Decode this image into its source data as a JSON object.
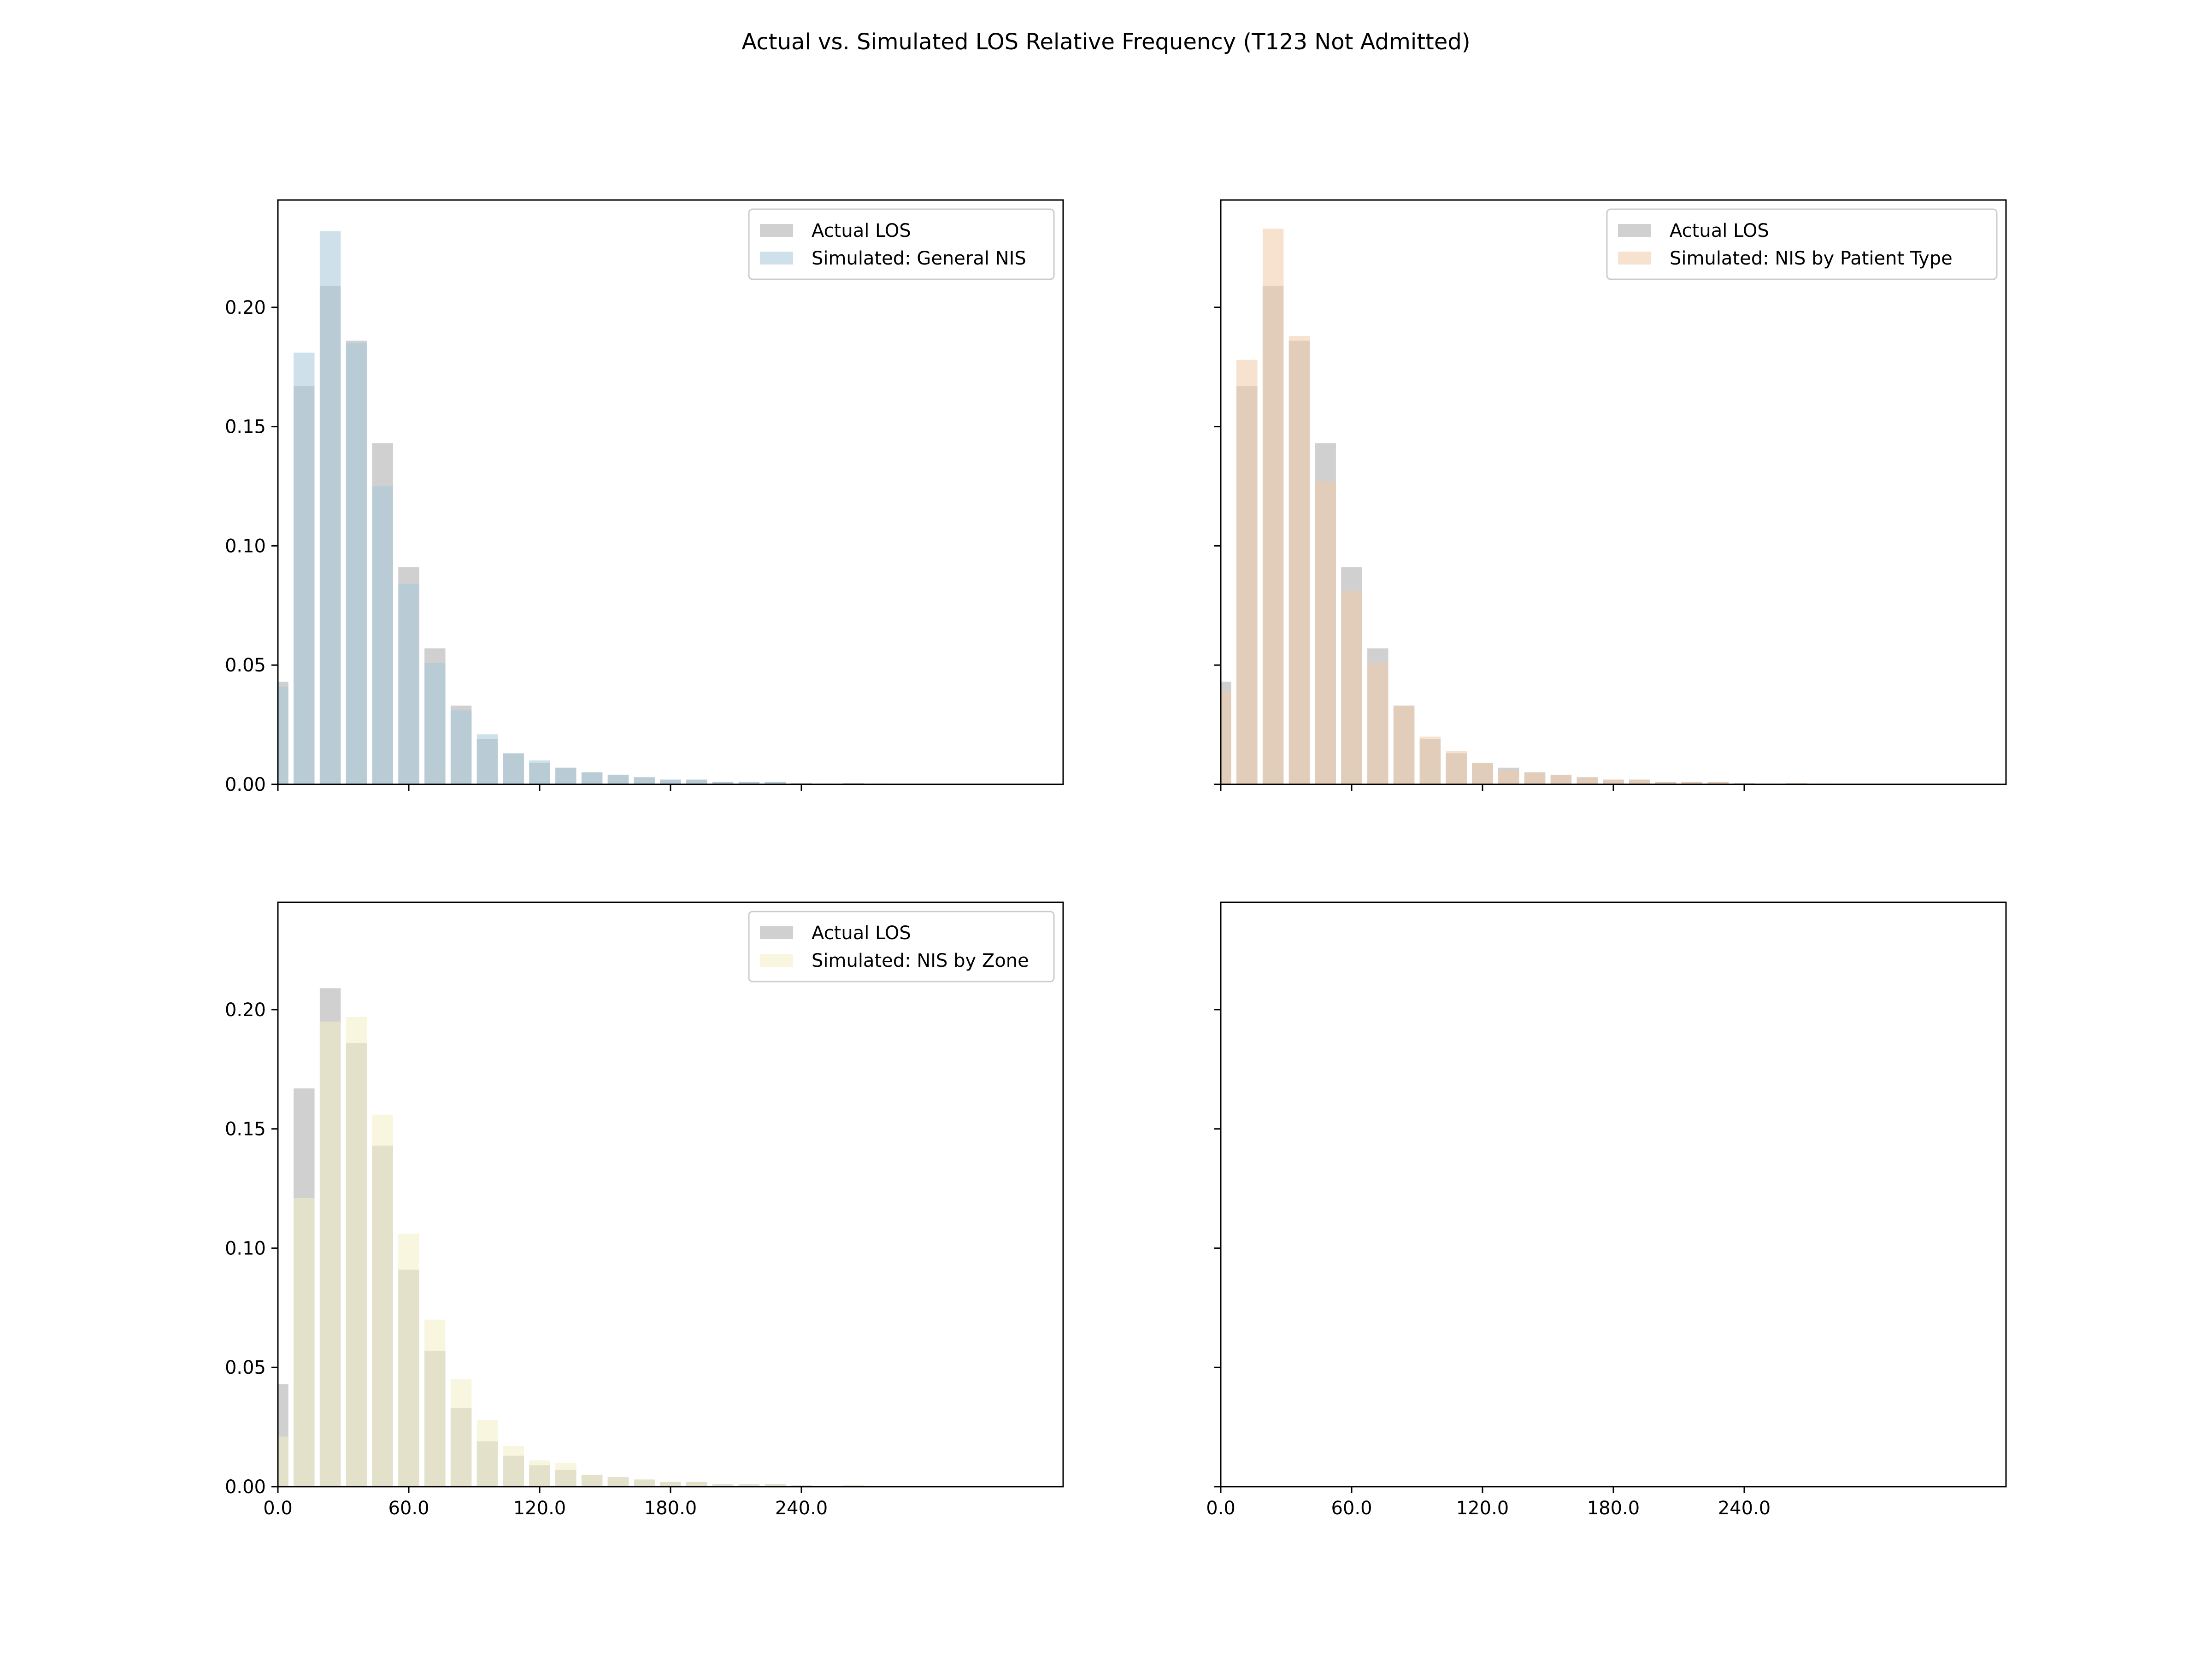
{
  "figure": {
    "title": "Actual vs. Simulated LOS Relative Frequency (T123 Not Admitted)"
  },
  "chart_data": [
    {
      "type": "bar",
      "panel": "top-left",
      "title": "",
      "xlabel": "",
      "ylabel": "",
      "x": [
        0,
        12,
        24,
        36,
        48,
        60,
        72,
        84,
        96,
        108,
        120,
        132,
        144,
        156,
        168,
        180,
        192,
        204,
        216,
        228,
        240,
        252,
        264,
        276
      ],
      "xlim": [
        0,
        360
      ],
      "ylim": [
        0,
        0.245
      ],
      "xticks": [
        0,
        60,
        120,
        180,
        240
      ],
      "xticklabels": [
        "0.0",
        "60.0",
        "120.0",
        "180.0",
        "240.0"
      ],
      "show_xticklabels": false,
      "yticks": [
        0,
        0.05,
        0.1,
        0.15,
        0.2
      ],
      "yticklabels": [
        "0.00",
        "0.05",
        "0.10",
        "0.15",
        "0.20"
      ],
      "show_yticklabels": true,
      "legend": "upper right",
      "grid": false,
      "series": [
        {
          "name": "Actual LOS",
          "color": "#a9a9a9",
          "values": [
            0.043,
            0.167,
            0.209,
            0.186,
            0.143,
            0.091,
            0.057,
            0.033,
            0.019,
            0.013,
            0.009,
            0.007,
            0.005,
            0.004,
            0.003,
            0.002,
            0.002,
            0.001,
            0.001,
            0.001,
            0.0005,
            0.0003,
            0.0005,
            0.0003
          ]
        },
        {
          "name": "Simulated: General NIS",
          "color": "#a6c8d8",
          "values": [
            0.041,
            0.181,
            0.232,
            0.185,
            0.125,
            0.084,
            0.051,
            0.031,
            0.021,
            0.013,
            0.01,
            0.007,
            0.005,
            0.004,
            0.003,
            0.002,
            0.002,
            0.001,
            0.001,
            0.001,
            0.0004,
            0.0003,
            0.0005,
            0.0003
          ]
        }
      ]
    },
    {
      "type": "bar",
      "panel": "top-right",
      "title": "",
      "xlabel": "",
      "ylabel": "",
      "x": [
        0,
        12,
        24,
        36,
        48,
        60,
        72,
        84,
        96,
        108,
        120,
        132,
        144,
        156,
        168,
        180,
        192,
        204,
        216,
        228,
        240,
        252,
        264,
        276
      ],
      "xlim": [
        0,
        360
      ],
      "ylim": [
        0,
        0.245
      ],
      "xticks": [
        0,
        60,
        120,
        180,
        240
      ],
      "xticklabels": [
        "0.0",
        "60.0",
        "120.0",
        "180.0",
        "240.0"
      ],
      "show_xticklabels": false,
      "yticks": [
        0,
        0.05,
        0.1,
        0.15,
        0.2
      ],
      "yticklabels": [
        "0.00",
        "0.05",
        "0.10",
        "0.15",
        "0.20"
      ],
      "show_yticklabels": false,
      "legend": "upper right",
      "grid": false,
      "series": [
        {
          "name": "Actual LOS",
          "color": "#a9a9a9",
          "values": [
            0.043,
            0.167,
            0.209,
            0.186,
            0.143,
            0.091,
            0.057,
            0.033,
            0.019,
            0.013,
            0.009,
            0.007,
            0.005,
            0.004,
            0.003,
            0.002,
            0.002,
            0.001,
            0.001,
            0.001,
            0.0005,
            0.0003,
            0.0005,
            0.0003
          ]
        },
        {
          "name": "Simulated: NIS by Patient Type",
          "color": "#f0c9a8",
          "values": [
            0.039,
            0.178,
            0.233,
            0.188,
            0.127,
            0.081,
            0.051,
            0.033,
            0.02,
            0.014,
            0.009,
            0.006,
            0.005,
            0.004,
            0.003,
            0.002,
            0.002,
            0.001,
            0.001,
            0.001,
            0.0004,
            0.0003,
            0.0005,
            0.0003
          ]
        }
      ]
    },
    {
      "type": "bar",
      "panel": "bottom-left",
      "title": "",
      "xlabel": "",
      "ylabel": "",
      "x": [
        0,
        12,
        24,
        36,
        48,
        60,
        72,
        84,
        96,
        108,
        120,
        132,
        144,
        156,
        168,
        180,
        192,
        204,
        216,
        228,
        240,
        252,
        264,
        276
      ],
      "xlim": [
        0,
        360
      ],
      "ylim": [
        0,
        0.245
      ],
      "xticks": [
        0,
        60,
        120,
        180,
        240
      ],
      "xticklabels": [
        "0.0",
        "60.0",
        "120.0",
        "180.0",
        "240.0"
      ],
      "show_xticklabels": true,
      "yticks": [
        0,
        0.05,
        0.1,
        0.15,
        0.2
      ],
      "yticklabels": [
        "0.00",
        "0.05",
        "0.10",
        "0.15",
        "0.20"
      ],
      "show_yticklabels": true,
      "legend": "upper right",
      "grid": false,
      "series": [
        {
          "name": "Actual LOS",
          "color": "#a9a9a9",
          "values": [
            0.043,
            0.167,
            0.209,
            0.186,
            0.143,
            0.091,
            0.057,
            0.033,
            0.019,
            0.013,
            0.009,
            0.007,
            0.005,
            0.004,
            0.003,
            0.002,
            0.002,
            0.001,
            0.001,
            0.001,
            0.0005,
            0.0003,
            0.0005,
            0.0003
          ]
        },
        {
          "name": "Simulated: NIS by Zone",
          "color": "#f2efc2",
          "values": [
            0.021,
            0.121,
            0.195,
            0.197,
            0.156,
            0.106,
            0.07,
            0.045,
            0.028,
            0.017,
            0.011,
            0.01,
            0.005,
            0.004,
            0.003,
            0.002,
            0.002,
            0.001,
            0.001,
            0.001,
            0.0004,
            0.0003,
            0.0005,
            0.0003
          ]
        }
      ]
    },
    {
      "type": "bar",
      "panel": "bottom-right",
      "title": "",
      "xlabel": "",
      "ylabel": "",
      "x": [],
      "xlim": [
        0,
        360
      ],
      "ylim": [
        0,
        0.245
      ],
      "xticks": [
        0,
        60,
        120,
        180,
        240
      ],
      "xticklabels": [
        "0.0",
        "60.0",
        "120.0",
        "180.0",
        "240.0"
      ],
      "show_xticklabels": true,
      "yticks": [
        0,
        0.05,
        0.1,
        0.15,
        0.2
      ],
      "yticklabels": [
        "0.00",
        "0.05",
        "0.10",
        "0.15",
        "0.20"
      ],
      "show_yticklabels": false,
      "legend": "none",
      "grid": false,
      "series": []
    }
  ]
}
